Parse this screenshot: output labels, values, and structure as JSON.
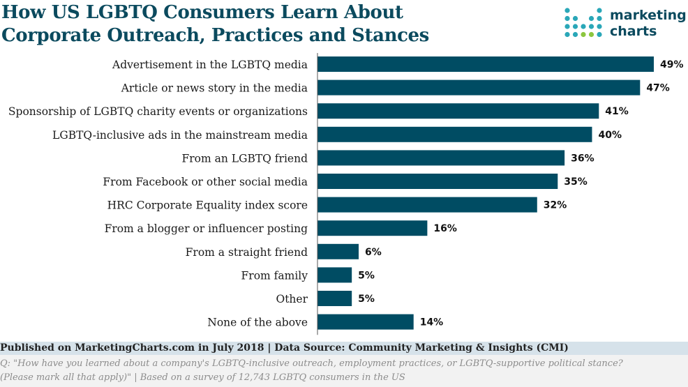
{
  "header": {
    "title_line1": "How US LGBTQ Consumers Learn About",
    "title_line2": "Corporate Outreach, Practices and Stances"
  },
  "logo": {
    "line1": "marketing",
    "line2": "charts",
    "dot_colors": [
      "#2aa7b8",
      "#8cc63f"
    ]
  },
  "chart_data": {
    "type": "bar",
    "orientation": "horizontal",
    "title": "How US LGBTQ Consumers Learn About Corporate Outreach, Practices and Stances",
    "categories": [
      "Advertisement in the LGBTQ media",
      "Article or news story in the media",
      "Sponsorship of LGBTQ charity events or organizations",
      "LGBTQ-inclusive ads in the mainstream media",
      "From an LGBTQ friend",
      "From Facebook or other social media",
      "HRC Corporate Equality index score",
      "From a blogger or influencer posting",
      "From a straight friend",
      "From family",
      "Other",
      "None of the above"
    ],
    "values": [
      49,
      47,
      41,
      40,
      36,
      35,
      32,
      16,
      6,
      5,
      5,
      14
    ],
    "value_labels": [
      "49%",
      "47%",
      "41%",
      "40%",
      "36%",
      "35%",
      "32%",
      "16%",
      "6%",
      "5%",
      "5%",
      "14%"
    ],
    "unit": "%",
    "xlim": [
      0,
      49
    ],
    "grid": false,
    "legend": "none",
    "bar_color": "#004c63"
  },
  "footer": {
    "source": "Published on MarketingCharts.com in July 2018 | Data Source: Community Marketing & Insights (CMI)",
    "note_line1": "Q: \"How have you learned about a company's LGBTQ-inclusive outreach, employment practices, or LGBTQ-supportive political stance?",
    "note_line2": "(Please mark all that apply)\" | Based on a survey of 12,743 LGBTQ consumers in the US"
  }
}
